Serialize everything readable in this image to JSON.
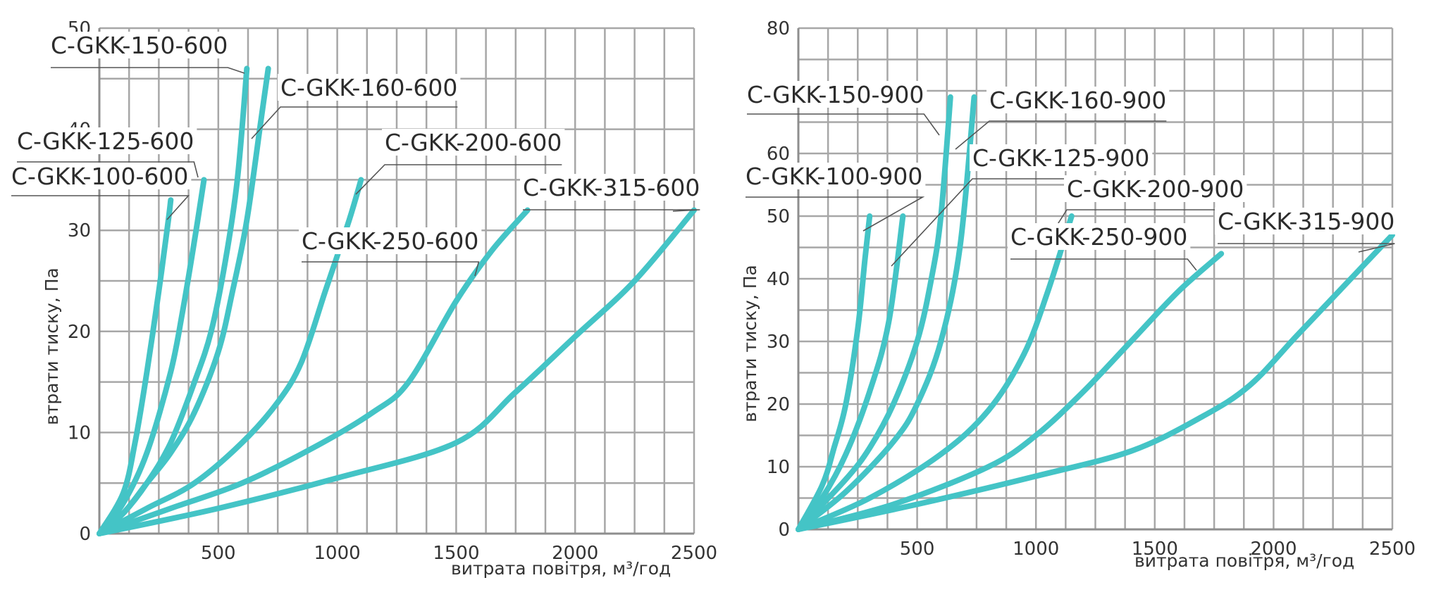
{
  "chart_data": [
    {
      "type": "line",
      "xlabel": "витрата повітря, м³/год",
      "ylabel": "втрати тиску, Па",
      "xlim": [
        0,
        2500
      ],
      "ylim": [
        0,
        50
      ],
      "x_ticks": [
        500,
        1000,
        1500,
        2000,
        2500
      ],
      "y_ticks": [
        0,
        10,
        20,
        30,
        40,
        50
      ],
      "grid": true,
      "series": [
        {
          "name": "C-GKK-100-600",
          "points": [
            [
              0,
              0
            ],
            [
              100,
              4
            ],
            [
              150,
              9
            ],
            [
              200,
              16
            ],
            [
              250,
              24
            ],
            [
              290,
              31
            ],
            [
              300,
              33
            ]
          ]
        },
        {
          "name": "C-GKK-125-600",
          "points": [
            [
              0,
              0
            ],
            [
              100,
              3
            ],
            [
              200,
              8
            ],
            [
              300,
              16
            ],
            [
              350,
              22
            ],
            [
              400,
              29
            ],
            [
              440,
              35
            ]
          ]
        },
        {
          "name": "C-GKK-150-600",
          "points": [
            [
              0,
              0
            ],
            [
              100,
              2
            ],
            [
              200,
              5
            ],
            [
              300,
              9
            ],
            [
              400,
              15
            ],
            [
              470,
              20
            ],
            [
              530,
              27
            ],
            [
              580,
              35
            ],
            [
              620,
              46
            ]
          ]
        },
        {
          "name": "C-GKK-160-600",
          "points": [
            [
              0,
              0
            ],
            [
              100,
              2
            ],
            [
              200,
              5
            ],
            [
              300,
              8
            ],
            [
              400,
              12
            ],
            [
              500,
              18
            ],
            [
              560,
              24
            ],
            [
              620,
              31
            ],
            [
              680,
              41
            ],
            [
              710,
              46
            ]
          ]
        },
        {
          "name": "C-GKK-200-600",
          "points": [
            [
              0,
              0
            ],
            [
              200,
              2.5
            ],
            [
              400,
              5
            ],
            [
              600,
              9
            ],
            [
              750,
              13
            ],
            [
              850,
              17
            ],
            [
              950,
              24
            ],
            [
              1050,
              31
            ],
            [
              1100,
              35
            ]
          ]
        },
        {
          "name": "C-GKK-250-600",
          "points": [
            [
              0,
              0
            ],
            [
              300,
              2.5
            ],
            [
              600,
              5
            ],
            [
              900,
              8.5
            ],
            [
              1150,
              12
            ],
            [
              1300,
              15
            ],
            [
              1500,
              23
            ],
            [
              1650,
              28
            ],
            [
              1800,
              32
            ]
          ]
        },
        {
          "name": "C-GKK-315-600",
          "points": [
            [
              0,
              0
            ],
            [
              500,
              2.5
            ],
            [
              1000,
              5.5
            ],
            [
              1500,
              9
            ],
            [
              1750,
              14
            ],
            [
              2000,
              19.5
            ],
            [
              2250,
              25
            ],
            [
              2500,
              32
            ]
          ]
        }
      ]
    },
    {
      "type": "line",
      "xlabel": "витрата повітря, м³/год",
      "ylabel": "втрати тиску, Па",
      "xlim": [
        0,
        2500
      ],
      "ylim": [
        0,
        80
      ],
      "x_ticks": [
        500,
        1000,
        1500,
        2000,
        2500
      ],
      "y_ticks": [
        0,
        10,
        20,
        30,
        40,
        50,
        60,
        70,
        80
      ],
      "grid": true,
      "series": [
        {
          "name": "C-GKK-100-900",
          "points": [
            [
              0,
              0
            ],
            [
              100,
              7
            ],
            [
              150,
              13
            ],
            [
              200,
              20
            ],
            [
              250,
              32
            ],
            [
              280,
              43
            ],
            [
              300,
              50
            ]
          ]
        },
        {
          "name": "C-GKK-125-900",
          "points": [
            [
              0,
              0
            ],
            [
              100,
              5
            ],
            [
              200,
              12
            ],
            [
              300,
              22
            ],
            [
              380,
              33
            ],
            [
              440,
              50
            ]
          ]
        },
        {
          "name": "C-GKK-150-900",
          "points": [
            [
              0,
              0
            ],
            [
              200,
              8
            ],
            [
              300,
              13
            ],
            [
              400,
              20
            ],
            [
              500,
              30
            ],
            [
              560,
              40
            ],
            [
              600,
              50
            ],
            [
              640,
              69
            ]
          ]
        },
        {
          "name": "C-GKK-160-900",
          "points": [
            [
              0,
              0
            ],
            [
              200,
              6
            ],
            [
              400,
              14
            ],
            [
              500,
              20
            ],
            [
              600,
              30
            ],
            [
              680,
              45
            ],
            [
              740,
              69
            ]
          ]
        },
        {
          "name": "C-GKK-200-900",
          "points": [
            [
              0,
              0
            ],
            [
              300,
              5
            ],
            [
              600,
              12
            ],
            [
              800,
              19
            ],
            [
              950,
              28
            ],
            [
              1050,
              38
            ],
            [
              1150,
              50
            ]
          ]
        },
        {
          "name": "C-GKK-250-900",
          "points": [
            [
              0,
              0
            ],
            [
              400,
              4
            ],
            [
              800,
              10
            ],
            [
              1000,
              15
            ],
            [
              1200,
              22
            ],
            [
              1400,
              30
            ],
            [
              1600,
              38
            ],
            [
              1780,
              44
            ]
          ]
        },
        {
          "name": "C-GKK-315-900",
          "points": [
            [
              0,
              0
            ],
            [
              500,
              4
            ],
            [
              1000,
              8.5
            ],
            [
              1400,
              12.5
            ],
            [
              1700,
              18
            ],
            [
              1900,
              23
            ],
            [
              2100,
              31
            ],
            [
              2300,
              39
            ],
            [
              2500,
              47
            ]
          ]
        }
      ]
    }
  ],
  "labels": [
    [
      {
        "text": "C-GKK-150-600"
      },
      {
        "text": "C-GKK-160-600"
      },
      {
        "text": "C-GKK-125-600"
      },
      {
        "text": "C-GKK-100-600"
      },
      {
        "text": "C-GKK-200-600"
      },
      {
        "text": "C-GKK-315-600"
      },
      {
        "text": "C-GKK-250-600"
      }
    ],
    [
      {
        "text": "C-GKK-150-900"
      },
      {
        "text": "C-GKK-160-900"
      },
      {
        "text": "C-GKK-125-900"
      },
      {
        "text": "C-GKK-100-900"
      },
      {
        "text": "C-GKK-200-900"
      },
      {
        "text": "C-GKK-250-900"
      },
      {
        "text": "C-GKK-315-900"
      }
    ]
  ]
}
